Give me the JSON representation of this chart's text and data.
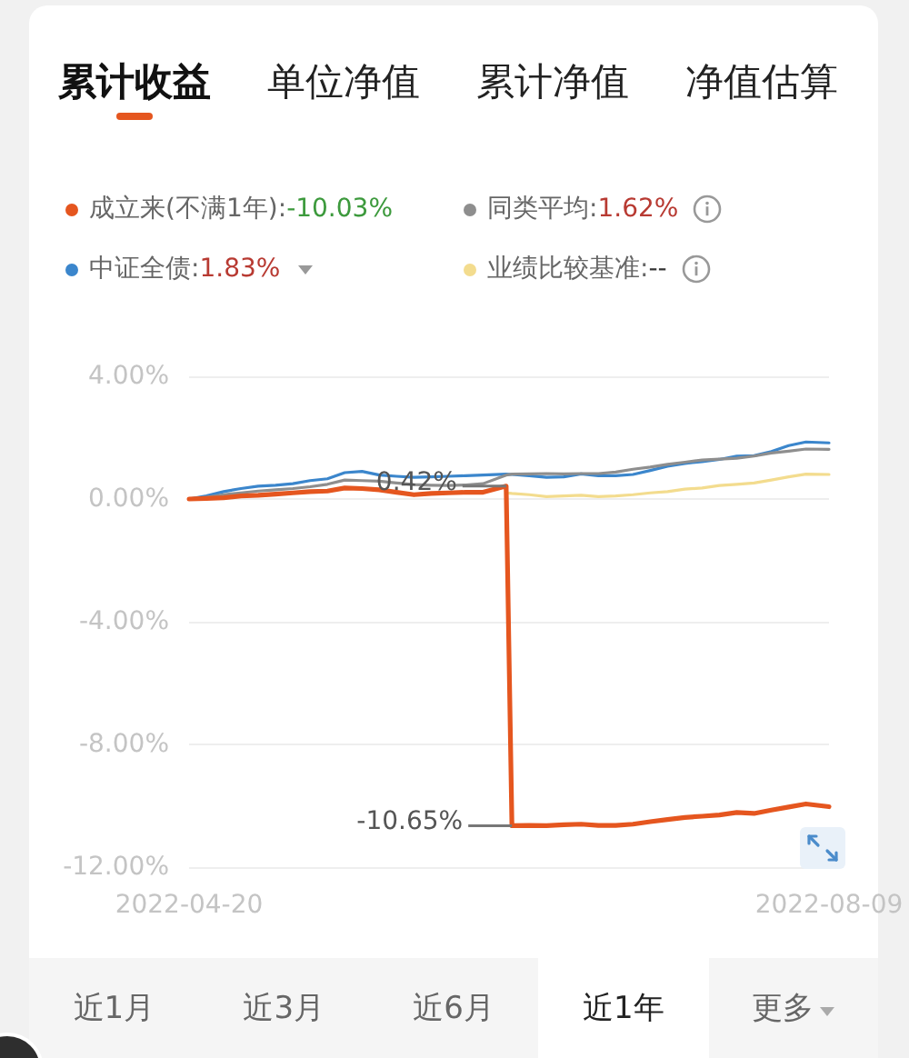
{
  "chart_data": {
    "type": "line",
    "title": "累计收益",
    "x": [
      "2022-04-20",
      "2022-04-23",
      "2022-04-26",
      "2022-04-29",
      "2022-05-02",
      "2022-05-05",
      "2022-05-08",
      "2022-05-11",
      "2022-05-14",
      "2022-05-17",
      "2022-05-20",
      "2022-05-23",
      "2022-05-26",
      "2022-05-29",
      "2022-06-01",
      "2022-06-04",
      "2022-06-07",
      "2022-06-10",
      "2022-06-14",
      "2022-06-15",
      "2022-06-18",
      "2022-06-21",
      "2022-06-24",
      "2022-06-27",
      "2022-06-30",
      "2022-07-03",
      "2022-07-06",
      "2022-07-09",
      "2022-07-12",
      "2022-07-15",
      "2022-07-18",
      "2022-07-21",
      "2022-07-24",
      "2022-07-27",
      "2022-07-30",
      "2022-08-02",
      "2022-08-05",
      "2022-08-09"
    ],
    "series": [
      {
        "name": "成立来(不满1年):-10.03%",
        "color": "#e5561f",
        "values": [
          0,
          0.02,
          0.04,
          0.1,
          0.12,
          0.16,
          0.2,
          0.24,
          0.26,
          0.36,
          0.34,
          0.3,
          0.22,
          0.14,
          0.18,
          0.2,
          0.22,
          0.22,
          0.42,
          -10.65,
          -10.64,
          -10.65,
          -10.62,
          -10.6,
          -10.64,
          -10.64,
          -10.6,
          -10.52,
          -10.45,
          -10.38,
          -10.34,
          -10.3,
          -10.22,
          -10.25,
          -10.14,
          -10.04,
          -9.94,
          -10.03
        ]
      },
      {
        "name": "同类平均:1.62%",
        "color": "#8e8e8e",
        "values": [
          0,
          0.06,
          0.14,
          0.2,
          0.26,
          0.3,
          0.34,
          0.4,
          0.48,
          0.62,
          0.6,
          0.58,
          0.52,
          0.47,
          0.45,
          0.44,
          0.46,
          0.5,
          0.78,
          0.81,
          0.82,
          0.83,
          0.82,
          0.83,
          0.83,
          0.88,
          0.97,
          1.04,
          1.13,
          1.2,
          1.27,
          1.3,
          1.33,
          1.4,
          1.5,
          1.56,
          1.63,
          1.62
        ]
      },
      {
        "name": "中证全债:1.83%",
        "color": "#3b86cc",
        "values": [
          0,
          0.1,
          0.24,
          0.34,
          0.42,
          0.45,
          0.5,
          0.6,
          0.66,
          0.86,
          0.9,
          0.78,
          0.74,
          0.71,
          0.72,
          0.74,
          0.76,
          0.78,
          0.81,
          0.8,
          0.76,
          0.71,
          0.72,
          0.82,
          0.76,
          0.76,
          0.8,
          0.93,
          1.07,
          1.16,
          1.22,
          1.29,
          1.4,
          1.41,
          1.55,
          1.74,
          1.86,
          1.83
        ]
      },
      {
        "name": "业绩比较基准:--",
        "color": "#f3dc8e",
        "values": [
          null,
          null,
          null,
          null,
          null,
          null,
          null,
          null,
          null,
          null,
          null,
          null,
          null,
          null,
          null,
          null,
          null,
          null,
          0.2,
          0.18,
          0.14,
          0.08,
          0.1,
          0.12,
          0.08,
          0.1,
          0.14,
          0.2,
          0.24,
          0.32,
          0.36,
          0.44,
          0.48,
          0.52,
          0.62,
          0.72,
          0.81,
          0.8
        ]
      }
    ],
    "xlim": [
      "2022-04-20",
      "2022-08-09"
    ],
    "xticks": [
      "2022-04-20",
      "2022-08-09"
    ],
    "ylim": [
      -12,
      4
    ],
    "yticks": [
      {
        "value": 4,
        "label": "4.00%"
      },
      {
        "value": 0,
        "label": "0.00%"
      },
      {
        "value": -4,
        "label": "-4.00%"
      },
      {
        "value": -8,
        "label": "-8.00%"
      },
      {
        "value": -12,
        "label": "-12.00%"
      }
    ],
    "grid": "y",
    "legend": "top",
    "marker": "none",
    "line_style": "solid",
    "annotations": [
      "单位净值",
      "累计净值",
      "净值估算",
      "近1月",
      "近3月",
      "近6月",
      "近1年",
      "更多",
      {
        "text": "0.42%",
        "x": "2022-06-14",
        "y": 0.42
      },
      {
        "text": "-10.65%",
        "x": "2022-06-15",
        "y": -10.65
      }
    ]
  }
}
